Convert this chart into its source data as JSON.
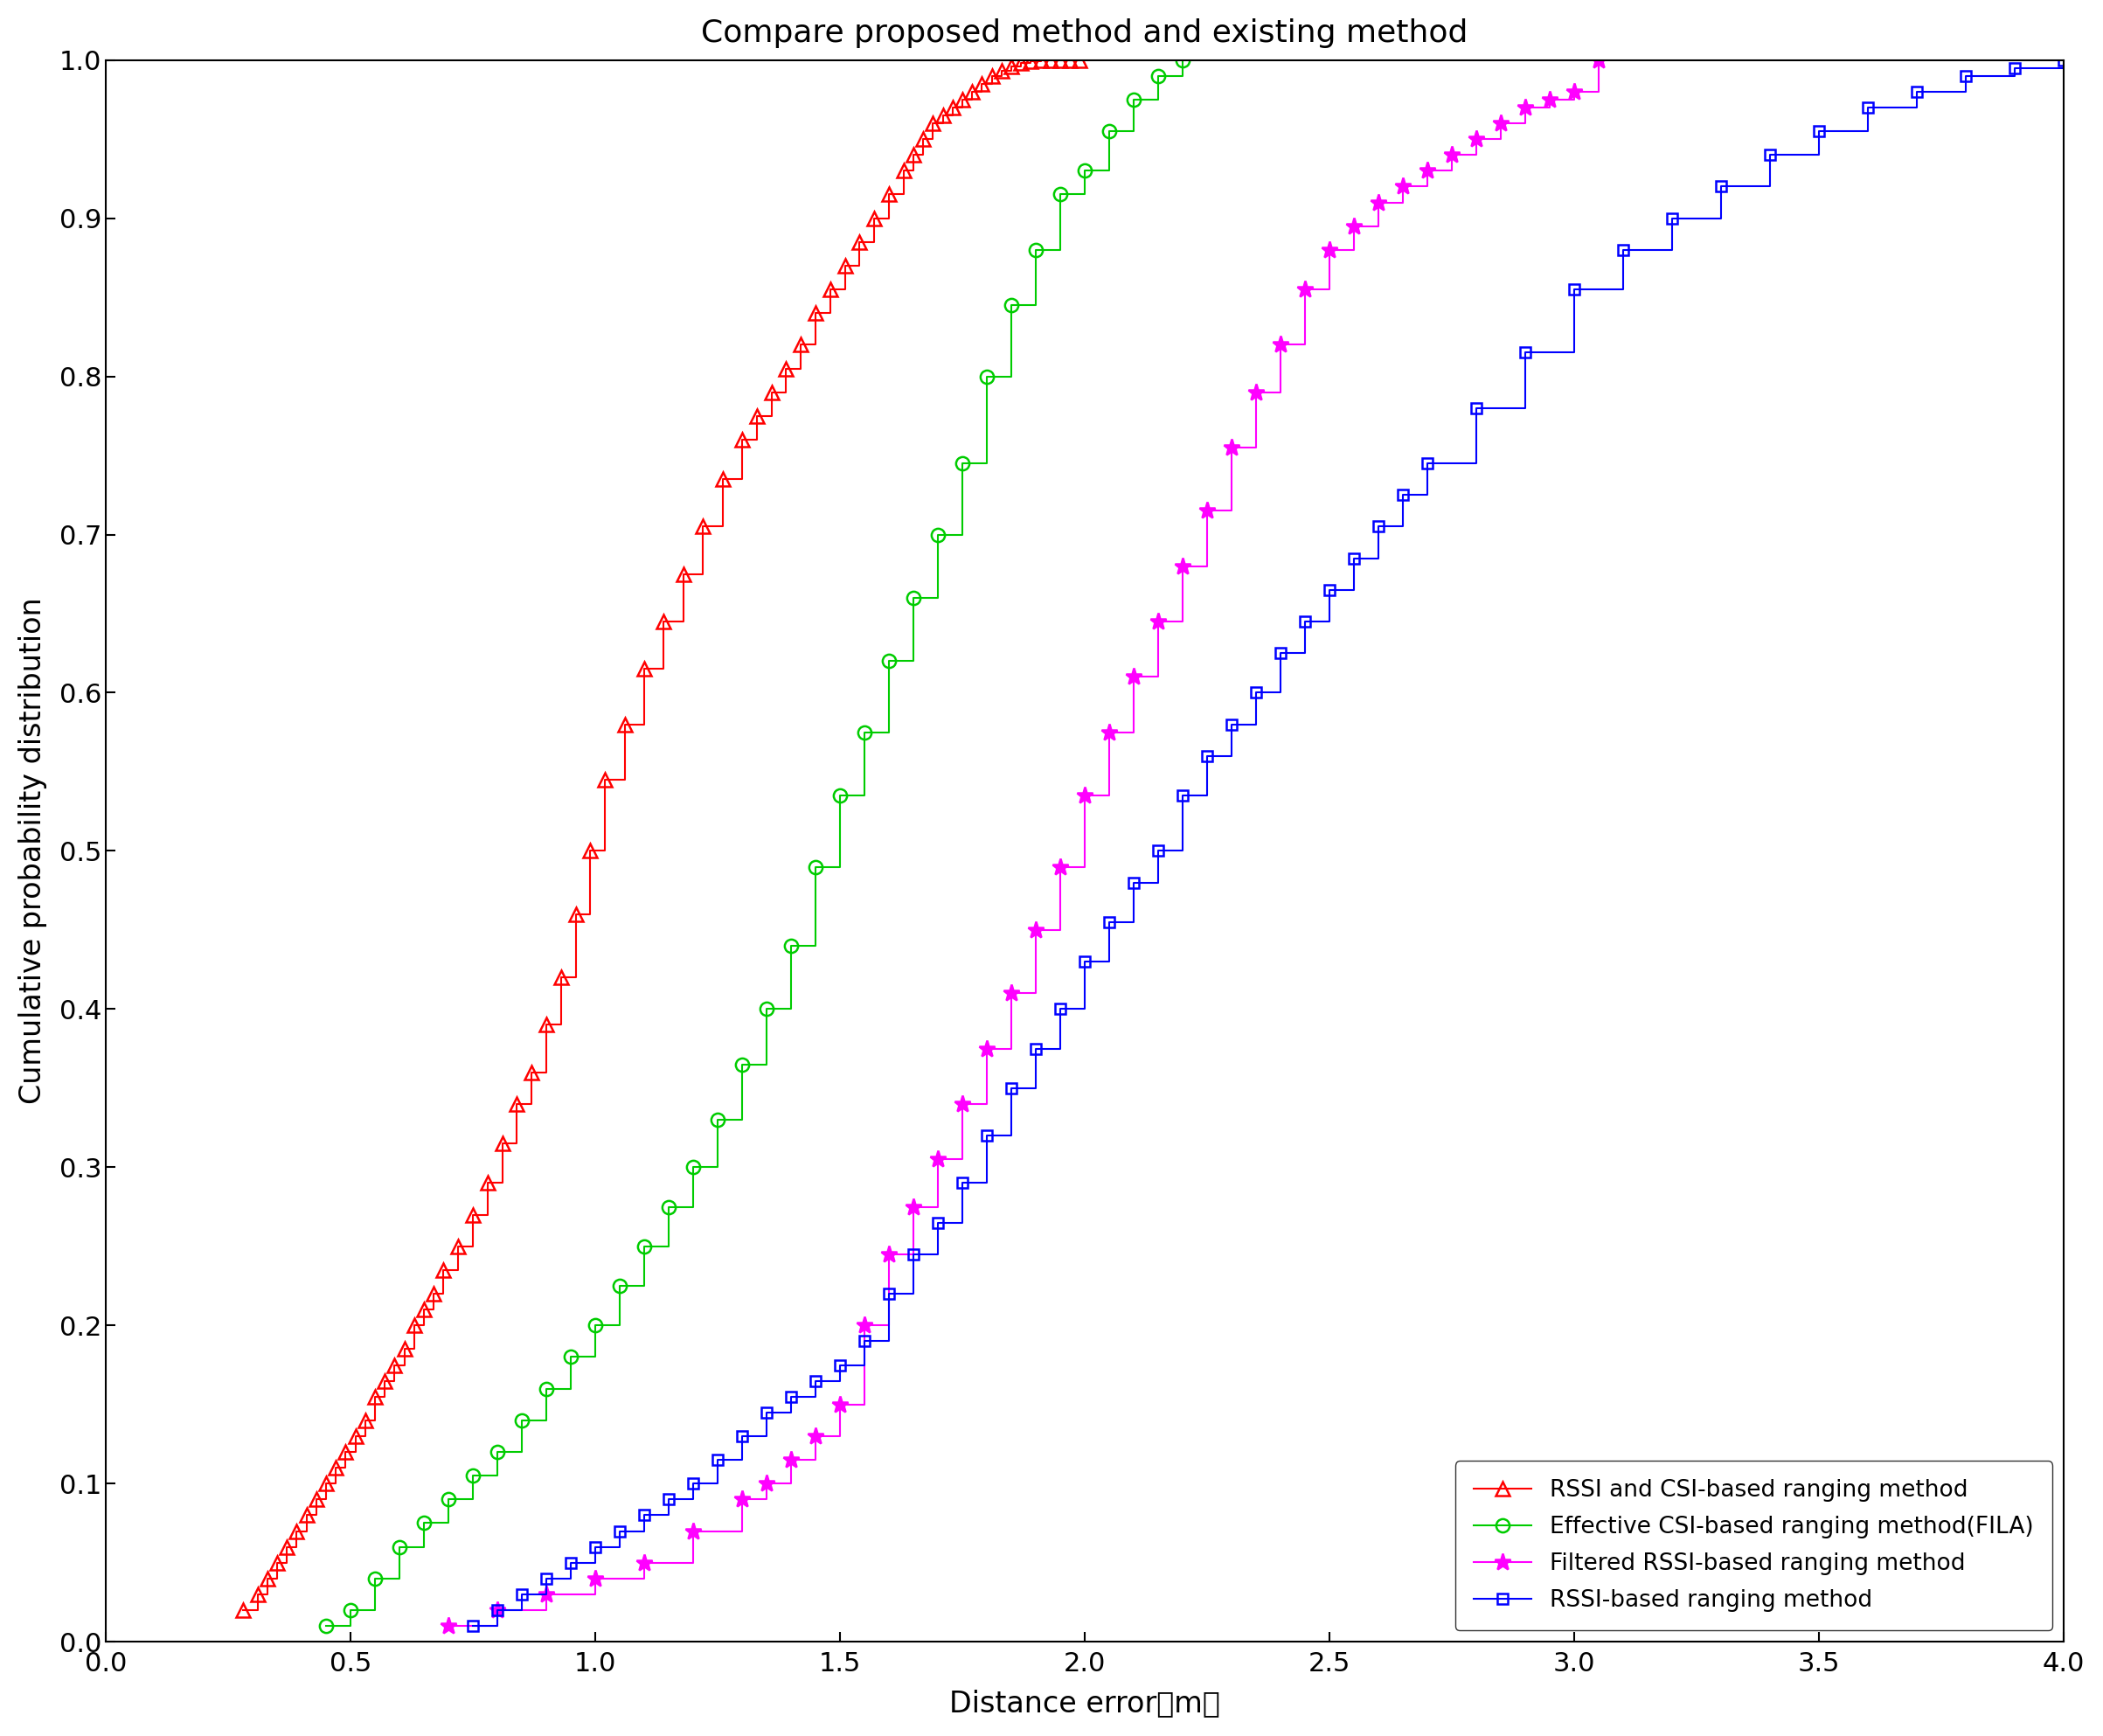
{
  "title": "Compare proposed method and existing method",
  "xlabel": "Distance error（m）",
  "ylabel": "Cumulative probability distribution",
  "xlim": [
    0,
    4
  ],
  "ylim": [
    0,
    1
  ],
  "xticks": [
    0,
    0.5,
    1.0,
    1.5,
    2.0,
    2.5,
    3.0,
    3.5,
    4.0
  ],
  "yticks": [
    0,
    0.1,
    0.2,
    0.3,
    0.4,
    0.5,
    0.6,
    0.7,
    0.8,
    0.9,
    1.0
  ],
  "series": [
    {
      "label": "RSSI and CSI-based ranging method",
      "color": "#FF0000",
      "marker": "^",
      "markersize": 11,
      "linewidth": 1.5,
      "drawstyle": "steps-post",
      "x": [
        0.28,
        0.31,
        0.33,
        0.35,
        0.37,
        0.39,
        0.41,
        0.43,
        0.45,
        0.47,
        0.49,
        0.51,
        0.53,
        0.55,
        0.57,
        0.59,
        0.61,
        0.63,
        0.65,
        0.67,
        0.69,
        0.72,
        0.75,
        0.78,
        0.81,
        0.84,
        0.87,
        0.9,
        0.93,
        0.96,
        0.99,
        1.02,
        1.06,
        1.1,
        1.14,
        1.18,
        1.22,
        1.26,
        1.3,
        1.33,
        1.36,
        1.39,
        1.42,
        1.45,
        1.48,
        1.51,
        1.54,
        1.57,
        1.6,
        1.63,
        1.65,
        1.67,
        1.69,
        1.71,
        1.73,
        1.75,
        1.77,
        1.79,
        1.81,
        1.83,
        1.85,
        1.87,
        1.89,
        1.91,
        1.93,
        1.95,
        1.97,
        1.99
      ],
      "y": [
        0.02,
        0.03,
        0.04,
        0.05,
        0.06,
        0.07,
        0.08,
        0.09,
        0.1,
        0.11,
        0.12,
        0.13,
        0.14,
        0.155,
        0.165,
        0.175,
        0.185,
        0.2,
        0.21,
        0.22,
        0.235,
        0.25,
        0.27,
        0.29,
        0.315,
        0.34,
        0.36,
        0.39,
        0.42,
        0.46,
        0.5,
        0.545,
        0.58,
        0.615,
        0.645,
        0.675,
        0.705,
        0.735,
        0.76,
        0.775,
        0.79,
        0.805,
        0.82,
        0.84,
        0.855,
        0.87,
        0.885,
        0.9,
        0.915,
        0.93,
        0.94,
        0.95,
        0.96,
        0.965,
        0.97,
        0.975,
        0.98,
        0.985,
        0.99,
        0.993,
        0.996,
        0.998,
        0.999,
        1.0,
        1.0,
        1.0,
        1.0,
        1.0
      ]
    },
    {
      "label": "Effective CSI-based ranging method(FILA)",
      "color": "#00CC00",
      "marker": "o",
      "markersize": 11,
      "linewidth": 1.5,
      "drawstyle": "steps-post",
      "x": [
        0.45,
        0.5,
        0.55,
        0.6,
        0.65,
        0.7,
        0.75,
        0.8,
        0.85,
        0.9,
        0.95,
        1.0,
        1.05,
        1.1,
        1.15,
        1.2,
        1.25,
        1.3,
        1.35,
        1.4,
        1.45,
        1.5,
        1.55,
        1.6,
        1.65,
        1.7,
        1.75,
        1.8,
        1.85,
        1.9,
        1.95,
        2.0,
        2.05,
        2.1,
        2.15,
        2.2
      ],
      "y": [
        0.01,
        0.02,
        0.04,
        0.06,
        0.075,
        0.09,
        0.105,
        0.12,
        0.14,
        0.16,
        0.18,
        0.2,
        0.225,
        0.25,
        0.275,
        0.3,
        0.33,
        0.365,
        0.4,
        0.44,
        0.49,
        0.535,
        0.575,
        0.62,
        0.66,
        0.7,
        0.745,
        0.8,
        0.845,
        0.88,
        0.915,
        0.93,
        0.955,
        0.975,
        0.99,
        1.0
      ]
    },
    {
      "label": "Filtered RSSI-based ranging method",
      "color": "#FF00FF",
      "marker": "*",
      "markersize": 14,
      "linewidth": 1.5,
      "drawstyle": "steps-post",
      "x": [
        0.7,
        0.8,
        0.9,
        1.0,
        1.1,
        1.2,
        1.3,
        1.35,
        1.4,
        1.45,
        1.5,
        1.55,
        1.6,
        1.65,
        1.7,
        1.75,
        1.8,
        1.85,
        1.9,
        1.95,
        2.0,
        2.05,
        2.1,
        2.15,
        2.2,
        2.25,
        2.3,
        2.35,
        2.4,
        2.45,
        2.5,
        2.55,
        2.6,
        2.65,
        2.7,
        2.75,
        2.8,
        2.85,
        2.9,
        2.95,
        3.0,
        3.05
      ],
      "y": [
        0.01,
        0.02,
        0.03,
        0.04,
        0.05,
        0.07,
        0.09,
        0.1,
        0.115,
        0.13,
        0.15,
        0.2,
        0.245,
        0.275,
        0.305,
        0.34,
        0.375,
        0.41,
        0.45,
        0.49,
        0.535,
        0.575,
        0.61,
        0.645,
        0.68,
        0.715,
        0.755,
        0.79,
        0.82,
        0.855,
        0.88,
        0.895,
        0.91,
        0.92,
        0.93,
        0.94,
        0.95,
        0.96,
        0.97,
        0.975,
        0.98,
        1.0
      ]
    },
    {
      "label": "RSSI-based ranging method",
      "color": "#0000FF",
      "marker": "s",
      "markersize": 9,
      "linewidth": 1.5,
      "drawstyle": "steps-post",
      "x": [
        0.75,
        0.8,
        0.85,
        0.9,
        0.95,
        1.0,
        1.05,
        1.1,
        1.15,
        1.2,
        1.25,
        1.3,
        1.35,
        1.4,
        1.45,
        1.5,
        1.55,
        1.6,
        1.65,
        1.7,
        1.75,
        1.8,
        1.85,
        1.9,
        1.95,
        2.0,
        2.05,
        2.1,
        2.15,
        2.2,
        2.25,
        2.3,
        2.35,
        2.4,
        2.45,
        2.5,
        2.55,
        2.6,
        2.65,
        2.7,
        2.8,
        2.9,
        3.0,
        3.1,
        3.2,
        3.3,
        3.4,
        3.5,
        3.6,
        3.7,
        3.8,
        3.9,
        4.0
      ],
      "y": [
        0.01,
        0.02,
        0.03,
        0.04,
        0.05,
        0.06,
        0.07,
        0.08,
        0.09,
        0.1,
        0.115,
        0.13,
        0.145,
        0.155,
        0.165,
        0.175,
        0.19,
        0.22,
        0.245,
        0.265,
        0.29,
        0.32,
        0.35,
        0.375,
        0.4,
        0.43,
        0.455,
        0.48,
        0.5,
        0.535,
        0.56,
        0.58,
        0.6,
        0.625,
        0.645,
        0.665,
        0.685,
        0.705,
        0.725,
        0.745,
        0.78,
        0.815,
        0.855,
        0.88,
        0.9,
        0.92,
        0.94,
        0.955,
        0.97,
        0.98,
        0.99,
        0.995,
        1.0
      ]
    }
  ],
  "legend": {
    "loc": "lower right",
    "fontsize": 19,
    "frameon": true,
    "edgecolor": "black"
  },
  "title_fontsize": 26,
  "label_fontsize": 24,
  "tick_fontsize": 22,
  "background_color": "#FFFFFF"
}
